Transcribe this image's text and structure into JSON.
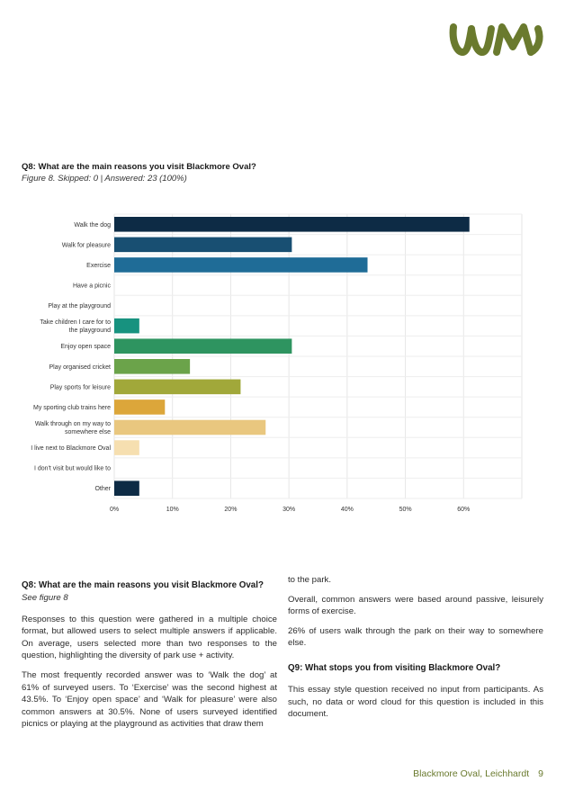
{
  "brand": {
    "logo_color": "#6a7a2e"
  },
  "figure": {
    "title": "Q8:  What are the main reasons you visit Blackmore Oval?",
    "subtitle": "Figure 8. Skipped: 0 | Answered: 23 (100%)"
  },
  "chart_data": {
    "type": "bar",
    "orientation": "horizontal",
    "title": "Q8: What are the main reasons you visit Blackmore Oval?",
    "xlabel": "",
    "ylabel": "",
    "xlim": [
      0,
      70
    ],
    "x_ticks": [
      "0%",
      "10%",
      "20%",
      "30%",
      "40%",
      "50%",
      "60%"
    ],
    "categories": [
      [
        "Walk the dog"
      ],
      [
        "Walk for pleasure"
      ],
      [
        "Exercise"
      ],
      [
        "Have a picnic"
      ],
      [
        "Play at the playground"
      ],
      [
        "Take children I care for to",
        "the playground"
      ],
      [
        "Enjoy open space"
      ],
      [
        "Play organised cricket"
      ],
      [
        "Play sports for leisure"
      ],
      [
        "My sporting club trains here"
      ],
      [
        "Walk through on my way to",
        "somewhere else"
      ],
      [
        "I live next to Blackmore Oval"
      ],
      [
        "I don't visit but would like to"
      ],
      [
        "Other"
      ]
    ],
    "values": [
      61,
      30.5,
      43.5,
      0,
      0,
      4.3,
      30.5,
      13,
      21.7,
      8.7,
      26,
      4.3,
      0,
      4.3
    ],
    "colors": [
      "#0d2b45",
      "#184f72",
      "#1f6c97",
      "#1f6c97",
      "#1f6c97",
      "#17927f",
      "#2e9460",
      "#6ba34a",
      "#a1a83a",
      "#dca63a",
      "#e9c77f",
      "#f6dfb0",
      "#f6dfb0",
      "#0d2b45"
    ],
    "grid": true
  },
  "body": {
    "heading": "Q8: What are the main reasons you visit Blackmore Oval?",
    "see": "See figure 8",
    "p1": "Responses to this question were gathered in a multiple choice format, but allowed users to select multiple answers if applicable. On average, users selected more than two responses to the question, highlighting the diversity of park use + activity.",
    "p2": "The most frequently recorded answer was to ‘Walk the dog’ at 61% of surveyed users. To ‘Exercise’ was the second highest at 43.5%. To ‘Enjoy open space’ and ‘Walk for pleasure’ were also common answers at 30.5%. None of users surveyed identified picnics or playing at the playground as activities that draw them",
    "p3": "to the park.",
    "p4": "Overall, common answers were based around passive, leisurely forms of exercise.",
    "p5": "26% of users walk through the park on their way to somewhere else.",
    "q9_heading": "Q9: What stops you from visiting Blackmore Oval?",
    "p6": "This essay style question received no input from participants. As such, no data or word cloud for this question is included in this document."
  },
  "footer": {
    "text": "Blackmore Oval, Leichhardt",
    "page": "9"
  }
}
